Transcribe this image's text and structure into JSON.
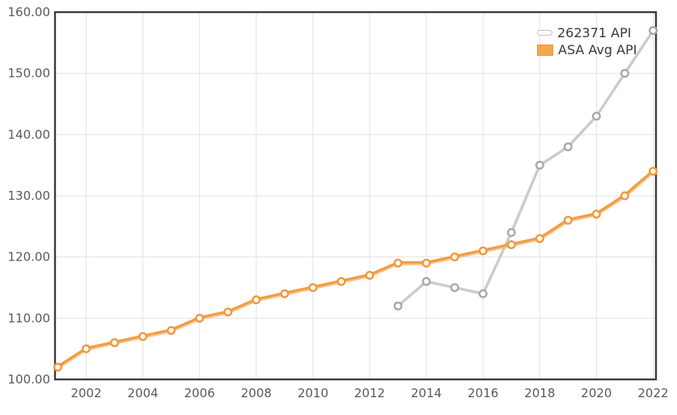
{
  "chart_data": {
    "type": "line",
    "title": "",
    "xlabel": "",
    "ylabel": "",
    "xlim": [
      2000.9,
      2022.1
    ],
    "ylim": [
      100,
      160
    ],
    "grid": true,
    "legend_position": "top-right",
    "xticks": [
      2002,
      2004,
      2006,
      2008,
      2010,
      2012,
      2014,
      2016,
      2018,
      2020,
      2022
    ],
    "yticks": [
      100,
      110,
      120,
      130,
      140,
      150,
      160
    ],
    "ytick_labels": [
      "100.00",
      "110.00",
      "120.00",
      "130.00",
      "140.00",
      "150.00",
      "160.00"
    ],
    "series": [
      {
        "name": "262371 API",
        "color": "#cbcbcb",
        "marker_color": "#a9a9a9",
        "marker_fill": "#ffffff",
        "x": [
          2013,
          2014,
          2015,
          2016,
          2017,
          2018,
          2019,
          2020,
          2021,
          2022
        ],
        "values": [
          112,
          116,
          115,
          114,
          124,
          135,
          138,
          143,
          150,
          157
        ]
      },
      {
        "name": "ASA Avg API",
        "color": "#fac084",
        "edge_color": "#f09a41",
        "marker_color": "#f0993f",
        "marker_fill": "#fffdf8",
        "x": [
          2001,
          2002,
          2003,
          2004,
          2005,
          2006,
          2007,
          2008,
          2009,
          2010,
          2011,
          2012,
          2013,
          2014,
          2015,
          2016,
          2017,
          2018,
          2019,
          2020,
          2021,
          2022
        ],
        "values": [
          102,
          105,
          106,
          107,
          108,
          110,
          111,
          113,
          114,
          115,
          116,
          117,
          119,
          119,
          120,
          121,
          122,
          123,
          126,
          127,
          130,
          134
        ]
      }
    ]
  },
  "colors": {
    "background": "#ffffff",
    "plot_border": "#3d3d3d",
    "grid": "#e3e3e3",
    "tick_text": "#595959",
    "legend_text": "#3a3a3a"
  }
}
